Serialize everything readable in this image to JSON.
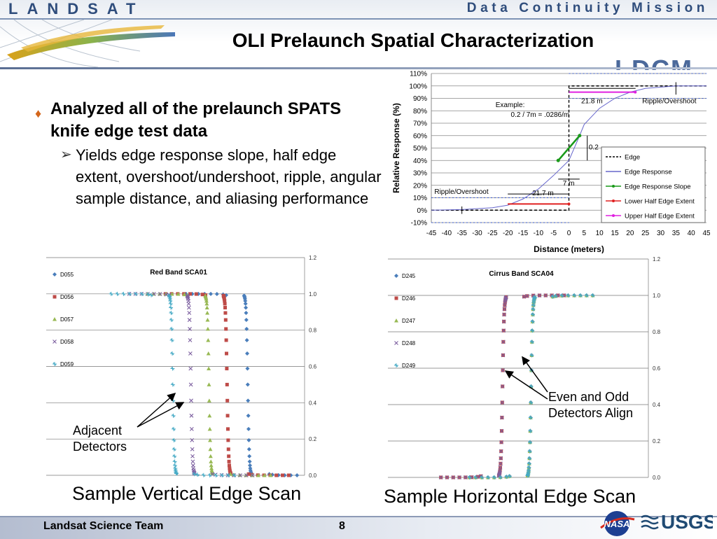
{
  "header": {
    "brand": "LANDSAT",
    "mission": "Data Continuity Mission",
    "mark": "LDCM",
    "title": "OLI Prelaunch Spatial Characterization"
  },
  "bullets": {
    "main": "Analyzed all of the prelaunch SPATS knife edge test data",
    "sub": "Yields edge response slope, half edge extent, overshoot/undershoot, ripple, angular sample distance, and aliasing performance"
  },
  "captions": {
    "left": "Sample Vertical Edge Scan",
    "right": "Sample Horizontal Edge Scan"
  },
  "annotations": {
    "left_line1": "Adjacent",
    "left_line2": "Detectors",
    "right_line1": "Even and Odd",
    "right_line2": "Detectors Align"
  },
  "footer": {
    "team": "Landsat Science Team",
    "page": "8",
    "nasa": "NASA",
    "usgs": "USGS"
  },
  "colors": {
    "d1": "#4a7ebb",
    "d2": "#be4b48",
    "d3": "#98b954",
    "d4": "#7d60a0",
    "d5": "#46aac5",
    "edge_slope": "#1a9a1a",
    "lower_half": "#e02020",
    "upper_half": "#e020e0",
    "edge_response": "#6666cc"
  },
  "chart_data": [
    {
      "type": "line",
      "xlabel": "Distance (meters)",
      "ylabel": "Relative Response (%)",
      "xlim": [
        -45,
        45
      ],
      "ylim": [
        -10,
        110
      ],
      "xticks": [
        -45,
        -40,
        -35,
        -30,
        -25,
        -20,
        -15,
        -10,
        -5,
        0,
        5,
        10,
        15,
        20,
        25,
        30,
        35,
        40,
        45
      ],
      "yticks": [
        "110%",
        "100%",
        "90%",
        "80%",
        "70%",
        "60%",
        "50%",
        "40%",
        "30%",
        "20%",
        "10%",
        "0%",
        "-10%"
      ],
      "legend": [
        "Edge",
        "Edge Response",
        "Edge Response Slope",
        "Lower Half Edge Extent",
        "Upper Half Edge Extent"
      ],
      "legend_position": "right",
      "series": [
        {
          "name": "Edge Response",
          "x": [
            -45,
            -35,
            -25,
            -20,
            -15,
            -10,
            -5,
            0,
            3.5,
            5,
            10,
            15,
            20,
            25,
            30,
            35,
            45
          ],
          "values": [
            0,
            0.5,
            2,
            4,
            9,
            17,
            28,
            40,
            60,
            69,
            82,
            90,
            95,
            98,
            99,
            100,
            100
          ]
        },
        {
          "name": "Edge Response Slope",
          "x": [
            -3.5,
            3.5
          ],
          "values": [
            40,
            60
          ]
        },
        {
          "name": "Lower Half Edge Extent",
          "x": [
            -45,
            -20,
            0
          ],
          "values": [
            5,
            5,
            5
          ]
        },
        {
          "name": "Upper Half Edge Extent",
          "x": [
            0,
            21.7
          ],
          "values": [
            95,
            95
          ]
        }
      ],
      "annotations": [
        "Example:",
        "0.2 / 7m = .0286/m",
        "21.8 m",
        "Ripple/Overshoot",
        "0.2",
        "7 m",
        "21.7 m",
        "Ripple/Overshoot"
      ]
    },
    {
      "type": "scatter",
      "title": "Red Band SCA01",
      "ylim": [
        0,
        1.2
      ],
      "yticks": [
        "1.2",
        "1.0",
        "0.8",
        "0.6",
        "0.4",
        "0.2",
        "0.0"
      ],
      "series": [
        {
          "name": "D055",
          "center": 0.78
        },
        {
          "name": "D056",
          "center": 0.7
        },
        {
          "name": "D057",
          "center": 0.63
        },
        {
          "name": "D058",
          "center": 0.56
        },
        {
          "name": "D059",
          "center": 0.49
        }
      ]
    },
    {
      "type": "scatter",
      "title": "Cirrus Band SCA04",
      "ylim": [
        0,
        1.2
      ],
      "yticks": [
        "1.2",
        "1.0",
        "0.8",
        "0.6",
        "0.4",
        "0.2",
        "0.0"
      ],
      "series": [
        {
          "name": "D245",
          "center": 0.55
        },
        {
          "name": "D246",
          "center": 0.44
        },
        {
          "name": "D247",
          "center": 0.55
        },
        {
          "name": "D248",
          "center": 0.44
        },
        {
          "name": "D249",
          "center": 0.55
        }
      ]
    }
  ]
}
